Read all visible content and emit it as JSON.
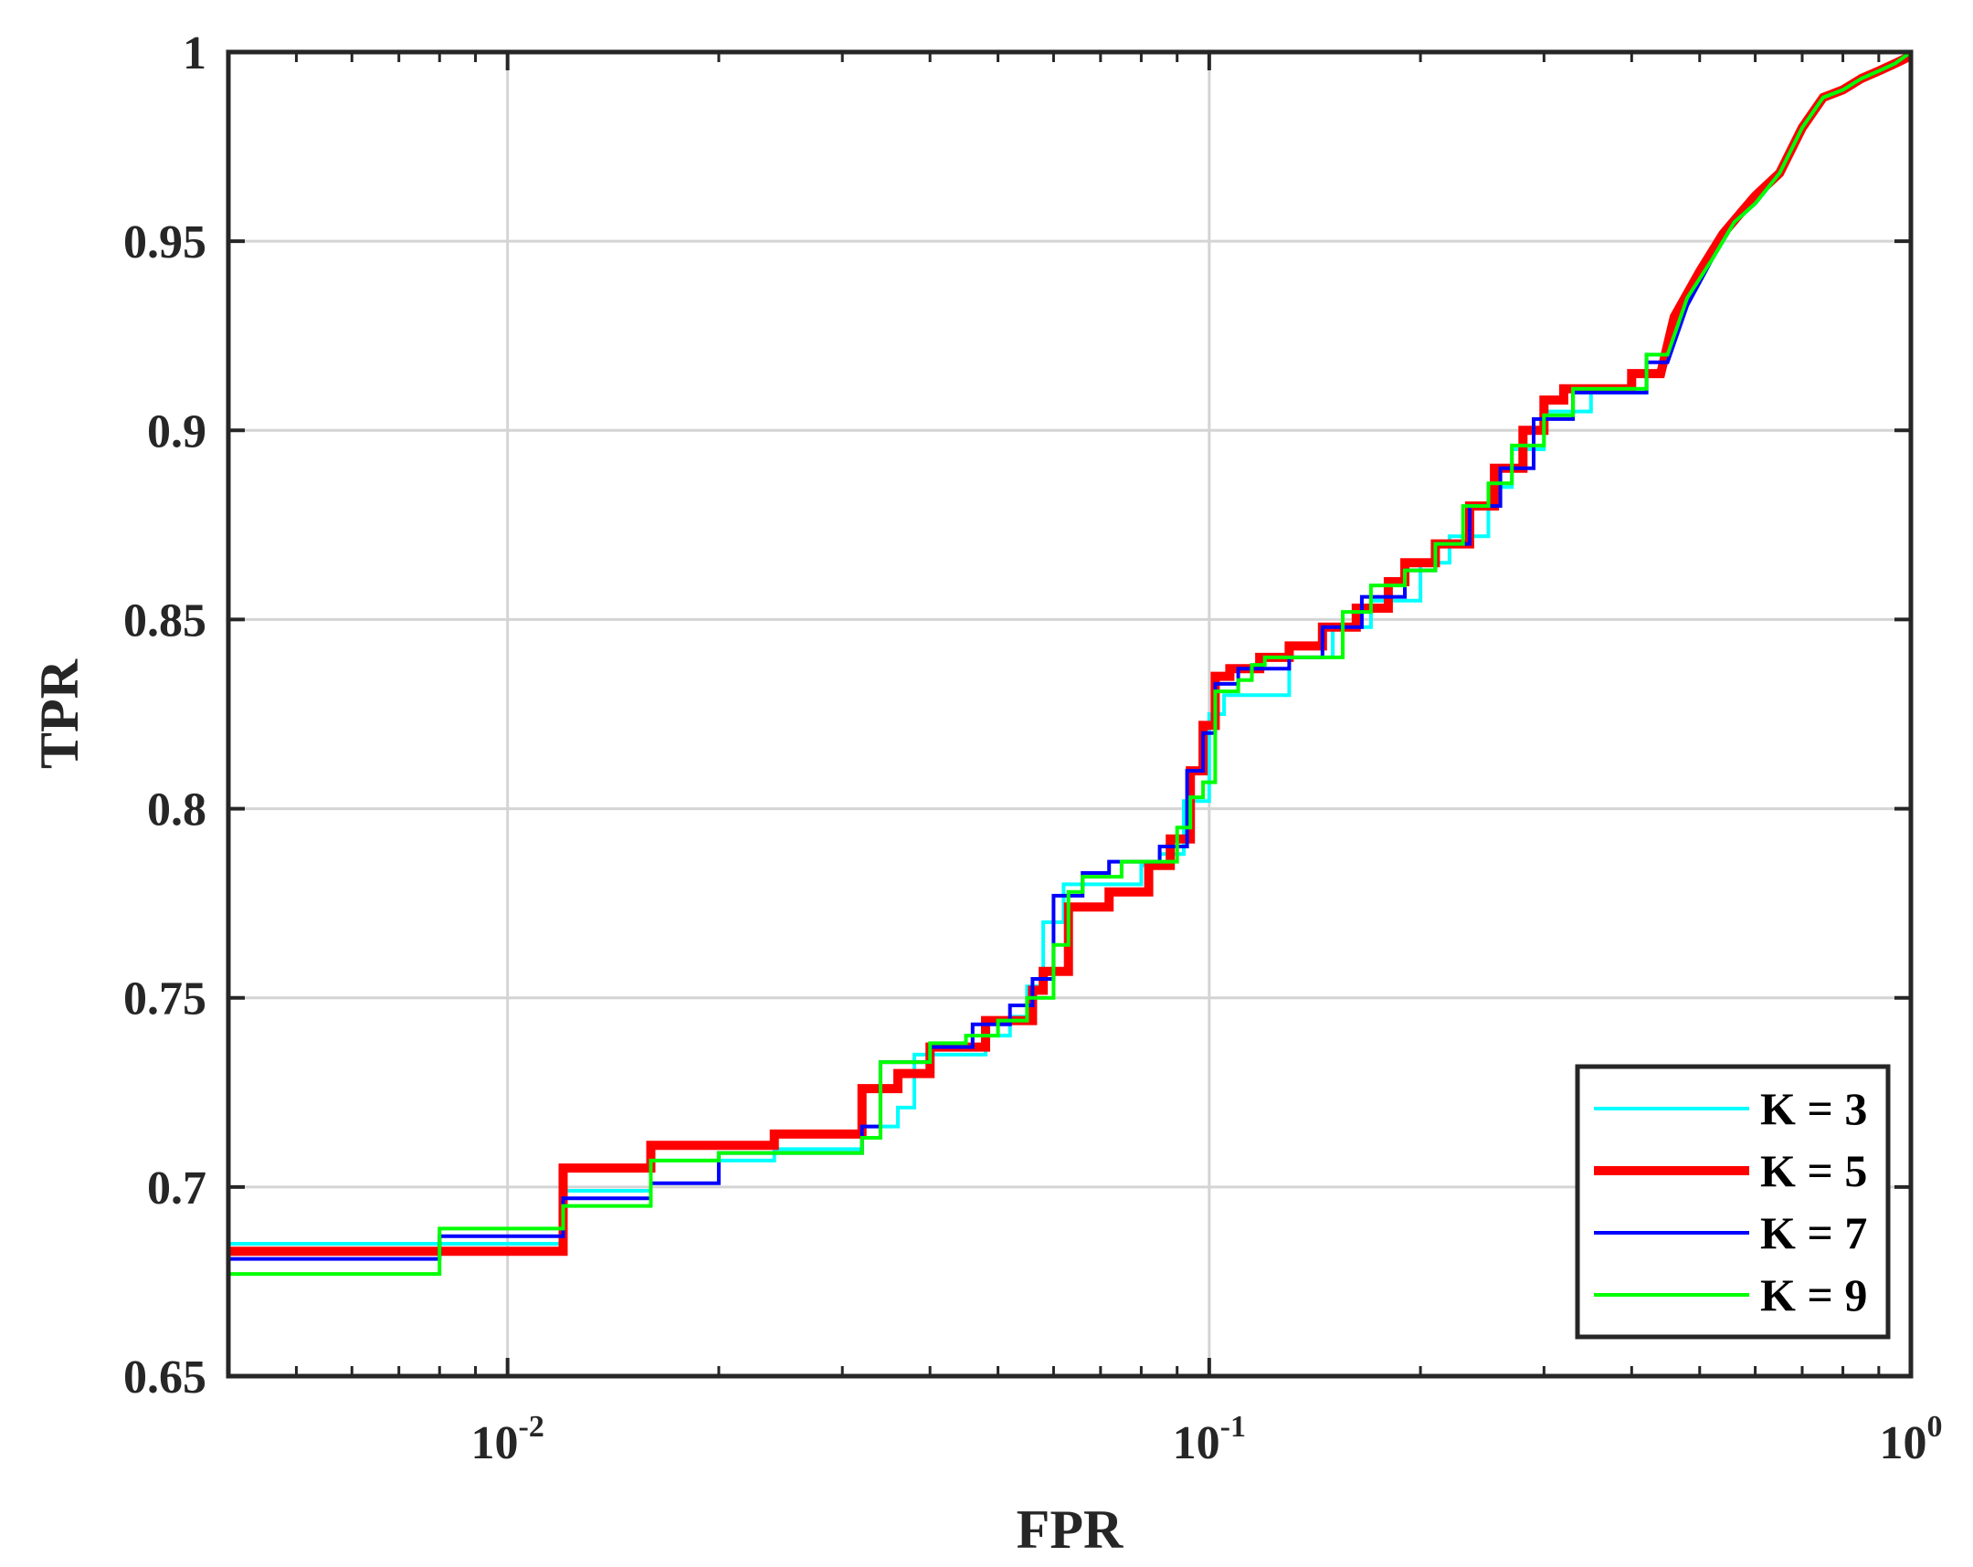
{
  "chart_data": {
    "type": "line",
    "title": "",
    "xlabel": "FPR",
    "ylabel": "TPR",
    "xscale": "log",
    "xlim": [
      0.004,
      1
    ],
    "ylim": [
      0.65,
      1
    ],
    "x_ticks": [
      {
        "value": 0.01,
        "base": "10",
        "exp": "-2"
      },
      {
        "value": 0.1,
        "base": "10",
        "exp": "-1"
      },
      {
        "value": 1,
        "base": "10",
        "exp": "0"
      }
    ],
    "y_ticks": [
      {
        "value": 0.65,
        "label": "0.65"
      },
      {
        "value": 0.7,
        "label": "0.7"
      },
      {
        "value": 0.75,
        "label": "0.75"
      },
      {
        "value": 0.8,
        "label": "0.8"
      },
      {
        "value": 0.85,
        "label": "0.85"
      },
      {
        "value": 0.9,
        "label": "0.9"
      },
      {
        "value": 0.95,
        "label": "0.95"
      },
      {
        "value": 1,
        "label": "1"
      }
    ],
    "grid": true,
    "legend_position": "bottom-right",
    "series": [
      {
        "name": "K = 3",
        "color": "#00FFFF",
        "width": 4,
        "points": [
          [
            0.004,
            0.685
          ],
          [
            0.008,
            0.685
          ],
          [
            0.012,
            0.685
          ],
          [
            0.012,
            0.699
          ],
          [
            0.016,
            0.699
          ],
          [
            0.016,
            0.707
          ],
          [
            0.024,
            0.707
          ],
          [
            0.024,
            0.71
          ],
          [
            0.032,
            0.71
          ],
          [
            0.032,
            0.716
          ],
          [
            0.036,
            0.716
          ],
          [
            0.036,
            0.721
          ],
          [
            0.038,
            0.721
          ],
          [
            0.038,
            0.735
          ],
          [
            0.048,
            0.735
          ],
          [
            0.048,
            0.74
          ],
          [
            0.052,
            0.74
          ],
          [
            0.052,
            0.745
          ],
          [
            0.055,
            0.745
          ],
          [
            0.055,
            0.753
          ],
          [
            0.058,
            0.753
          ],
          [
            0.058,
            0.77
          ],
          [
            0.062,
            0.77
          ],
          [
            0.062,
            0.78
          ],
          [
            0.08,
            0.78
          ],
          [
            0.08,
            0.785
          ],
          [
            0.085,
            0.785
          ],
          [
            0.085,
            0.788
          ],
          [
            0.092,
            0.788
          ],
          [
            0.092,
            0.802
          ],
          [
            0.1,
            0.802
          ],
          [
            0.1,
            0.825
          ],
          [
            0.105,
            0.825
          ],
          [
            0.105,
            0.83
          ],
          [
            0.13,
            0.83
          ],
          [
            0.13,
            0.84
          ],
          [
            0.15,
            0.84
          ],
          [
            0.15,
            0.848
          ],
          [
            0.17,
            0.848
          ],
          [
            0.17,
            0.855
          ],
          [
            0.2,
            0.855
          ],
          [
            0.2,
            0.865
          ],
          [
            0.22,
            0.865
          ],
          [
            0.22,
            0.872
          ],
          [
            0.25,
            0.872
          ],
          [
            0.25,
            0.885
          ],
          [
            0.27,
            0.885
          ],
          [
            0.27,
            0.895
          ],
          [
            0.3,
            0.895
          ],
          [
            0.3,
            0.905
          ],
          [
            0.35,
            0.905
          ],
          [
            0.35,
            0.91
          ],
          [
            0.42,
            0.91
          ],
          [
            0.42,
            0.92
          ],
          [
            0.45,
            0.92
          ],
          [
            0.48,
            0.935
          ],
          [
            0.52,
            0.945
          ],
          [
            0.56,
            0.955
          ],
          [
            0.6,
            0.96
          ],
          [
            0.65,
            0.968
          ],
          [
            0.7,
            0.98
          ],
          [
            0.75,
            0.988
          ],
          [
            0.8,
            0.99
          ],
          [
            0.85,
            0.993
          ],
          [
            0.9,
            0.995
          ],
          [
            0.95,
            0.997
          ],
          [
            1,
            1
          ]
        ]
      },
      {
        "name": "K = 5",
        "color": "#FF0000",
        "width": 10,
        "points": [
          [
            0.004,
            0.683
          ],
          [
            0.008,
            0.683
          ],
          [
            0.012,
            0.683
          ],
          [
            0.012,
            0.705
          ],
          [
            0.016,
            0.705
          ],
          [
            0.016,
            0.711
          ],
          [
            0.024,
            0.711
          ],
          [
            0.024,
            0.714
          ],
          [
            0.032,
            0.714
          ],
          [
            0.032,
            0.726
          ],
          [
            0.036,
            0.726
          ],
          [
            0.036,
            0.73
          ],
          [
            0.04,
            0.73
          ],
          [
            0.04,
            0.737
          ],
          [
            0.048,
            0.737
          ],
          [
            0.048,
            0.744
          ],
          [
            0.056,
            0.744
          ],
          [
            0.056,
            0.752
          ],
          [
            0.058,
            0.752
          ],
          [
            0.058,
            0.757
          ],
          [
            0.063,
            0.757
          ],
          [
            0.063,
            0.774
          ],
          [
            0.072,
            0.774
          ],
          [
            0.072,
            0.778
          ],
          [
            0.082,
            0.778
          ],
          [
            0.082,
            0.785
          ],
          [
            0.088,
            0.785
          ],
          [
            0.088,
            0.792
          ],
          [
            0.094,
            0.792
          ],
          [
            0.094,
            0.81
          ],
          [
            0.098,
            0.81
          ],
          [
            0.098,
            0.822
          ],
          [
            0.102,
            0.822
          ],
          [
            0.102,
            0.835
          ],
          [
            0.107,
            0.835
          ],
          [
            0.107,
            0.837
          ],
          [
            0.118,
            0.837
          ],
          [
            0.118,
            0.84
          ],
          [
            0.13,
            0.84
          ],
          [
            0.13,
            0.843
          ],
          [
            0.145,
            0.843
          ],
          [
            0.145,
            0.848
          ],
          [
            0.162,
            0.848
          ],
          [
            0.162,
            0.853
          ],
          [
            0.18,
            0.853
          ],
          [
            0.18,
            0.86
          ],
          [
            0.19,
            0.86
          ],
          [
            0.19,
            0.865
          ],
          [
            0.21,
            0.865
          ],
          [
            0.21,
            0.87
          ],
          [
            0.235,
            0.87
          ],
          [
            0.235,
            0.88
          ],
          [
            0.255,
            0.88
          ],
          [
            0.255,
            0.89
          ],
          [
            0.28,
            0.89
          ],
          [
            0.28,
            0.9
          ],
          [
            0.3,
            0.9
          ],
          [
            0.3,
            0.908
          ],
          [
            0.32,
            0.908
          ],
          [
            0.32,
            0.911
          ],
          [
            0.4,
            0.911
          ],
          [
            0.4,
            0.915
          ],
          [
            0.44,
            0.915
          ],
          [
            0.46,
            0.93
          ],
          [
            0.5,
            0.942
          ],
          [
            0.54,
            0.952
          ],
          [
            0.6,
            0.962
          ],
          [
            0.65,
            0.968
          ],
          [
            0.7,
            0.98
          ],
          [
            0.75,
            0.988
          ],
          [
            0.8,
            0.99
          ],
          [
            0.85,
            0.993
          ],
          [
            0.9,
            0.995
          ],
          [
            0.95,
            0.997
          ],
          [
            1,
            0.999
          ]
        ]
      },
      {
        "name": "K = 7",
        "color": "#0000FF",
        "width": 4,
        "points": [
          [
            0.004,
            0.681
          ],
          [
            0.008,
            0.681
          ],
          [
            0.008,
            0.687
          ],
          [
            0.012,
            0.687
          ],
          [
            0.012,
            0.697
          ],
          [
            0.016,
            0.697
          ],
          [
            0.016,
            0.701
          ],
          [
            0.02,
            0.701
          ],
          [
            0.02,
            0.709
          ],
          [
            0.032,
            0.709
          ],
          [
            0.032,
            0.716
          ],
          [
            0.034,
            0.716
          ],
          [
            0.034,
            0.733
          ],
          [
            0.04,
            0.733
          ],
          [
            0.04,
            0.737
          ],
          [
            0.046,
            0.737
          ],
          [
            0.046,
            0.743
          ],
          [
            0.052,
            0.743
          ],
          [
            0.052,
            0.748
          ],
          [
            0.056,
            0.748
          ],
          [
            0.056,
            0.755
          ],
          [
            0.06,
            0.755
          ],
          [
            0.06,
            0.777
          ],
          [
            0.066,
            0.777
          ],
          [
            0.066,
            0.783
          ],
          [
            0.072,
            0.783
          ],
          [
            0.072,
            0.786
          ],
          [
            0.085,
            0.786
          ],
          [
            0.085,
            0.79
          ],
          [
            0.093,
            0.79
          ],
          [
            0.093,
            0.81
          ],
          [
            0.098,
            0.81
          ],
          [
            0.098,
            0.82
          ],
          [
            0.102,
            0.82
          ],
          [
            0.102,
            0.833
          ],
          [
            0.11,
            0.833
          ],
          [
            0.11,
            0.837
          ],
          [
            0.13,
            0.837
          ],
          [
            0.13,
            0.84
          ],
          [
            0.145,
            0.84
          ],
          [
            0.145,
            0.848
          ],
          [
            0.165,
            0.848
          ],
          [
            0.165,
            0.856
          ],
          [
            0.19,
            0.856
          ],
          [
            0.19,
            0.863
          ],
          [
            0.21,
            0.863
          ],
          [
            0.21,
            0.87
          ],
          [
            0.235,
            0.87
          ],
          [
            0.235,
            0.88
          ],
          [
            0.26,
            0.88
          ],
          [
            0.26,
            0.89
          ],
          [
            0.29,
            0.89
          ],
          [
            0.29,
            0.903
          ],
          [
            0.33,
            0.903
          ],
          [
            0.33,
            0.91
          ],
          [
            0.42,
            0.91
          ],
          [
            0.42,
            0.918
          ],
          [
            0.45,
            0.918
          ],
          [
            0.48,
            0.933
          ],
          [
            0.52,
            0.945
          ],
          [
            0.56,
            0.955
          ],
          [
            0.6,
            0.96
          ],
          [
            0.65,
            0.968
          ],
          [
            0.7,
            0.98
          ],
          [
            0.75,
            0.988
          ],
          [
            0.8,
            0.99
          ],
          [
            0.85,
            0.993
          ],
          [
            0.9,
            0.995
          ],
          [
            0.95,
            0.997
          ],
          [
            1,
            1
          ]
        ]
      },
      {
        "name": "K = 9",
        "color": "#00FF00",
        "width": 4,
        "points": [
          [
            0.004,
            0.677
          ],
          [
            0.008,
            0.677
          ],
          [
            0.008,
            0.689
          ],
          [
            0.012,
            0.689
          ],
          [
            0.012,
            0.695
          ],
          [
            0.016,
            0.695
          ],
          [
            0.016,
            0.707
          ],
          [
            0.02,
            0.707
          ],
          [
            0.02,
            0.709
          ],
          [
            0.032,
            0.709
          ],
          [
            0.032,
            0.713
          ],
          [
            0.034,
            0.713
          ],
          [
            0.034,
            0.733
          ],
          [
            0.04,
            0.733
          ],
          [
            0.04,
            0.738
          ],
          [
            0.045,
            0.738
          ],
          [
            0.045,
            0.74
          ],
          [
            0.05,
            0.74
          ],
          [
            0.05,
            0.744
          ],
          [
            0.055,
            0.744
          ],
          [
            0.055,
            0.75
          ],
          [
            0.06,
            0.75
          ],
          [
            0.06,
            0.764
          ],
          [
            0.063,
            0.764
          ],
          [
            0.063,
            0.778
          ],
          [
            0.066,
            0.778
          ],
          [
            0.066,
            0.782
          ],
          [
            0.075,
            0.782
          ],
          [
            0.075,
            0.786
          ],
          [
            0.09,
            0.786
          ],
          [
            0.09,
            0.795
          ],
          [
            0.094,
            0.795
          ],
          [
            0.094,
            0.803
          ],
          [
            0.098,
            0.803
          ],
          [
            0.098,
            0.807
          ],
          [
            0.102,
            0.807
          ],
          [
            0.102,
            0.831
          ],
          [
            0.11,
            0.831
          ],
          [
            0.11,
            0.834
          ],
          [
            0.115,
            0.834
          ],
          [
            0.115,
            0.838
          ],
          [
            0.12,
            0.838
          ],
          [
            0.12,
            0.84
          ],
          [
            0.155,
            0.84
          ],
          [
            0.155,
            0.852
          ],
          [
            0.17,
            0.852
          ],
          [
            0.17,
            0.859
          ],
          [
            0.19,
            0.859
          ],
          [
            0.19,
            0.863
          ],
          [
            0.21,
            0.863
          ],
          [
            0.21,
            0.87
          ],
          [
            0.23,
            0.87
          ],
          [
            0.23,
            0.88
          ],
          [
            0.25,
            0.88
          ],
          [
            0.25,
            0.886
          ],
          [
            0.27,
            0.886
          ],
          [
            0.27,
            0.896
          ],
          [
            0.3,
            0.896
          ],
          [
            0.3,
            0.904
          ],
          [
            0.33,
            0.904
          ],
          [
            0.33,
            0.911
          ],
          [
            0.42,
            0.911
          ],
          [
            0.42,
            0.92
          ],
          [
            0.45,
            0.92
          ],
          [
            0.48,
            0.935
          ],
          [
            0.52,
            0.945
          ],
          [
            0.56,
            0.955
          ],
          [
            0.6,
            0.96
          ],
          [
            0.65,
            0.968
          ],
          [
            0.7,
            0.98
          ],
          [
            0.75,
            0.988
          ],
          [
            0.8,
            0.99
          ],
          [
            0.85,
            0.993
          ],
          [
            0.9,
            0.995
          ],
          [
            0.95,
            0.997
          ],
          [
            1,
            1
          ]
        ]
      }
    ]
  }
}
